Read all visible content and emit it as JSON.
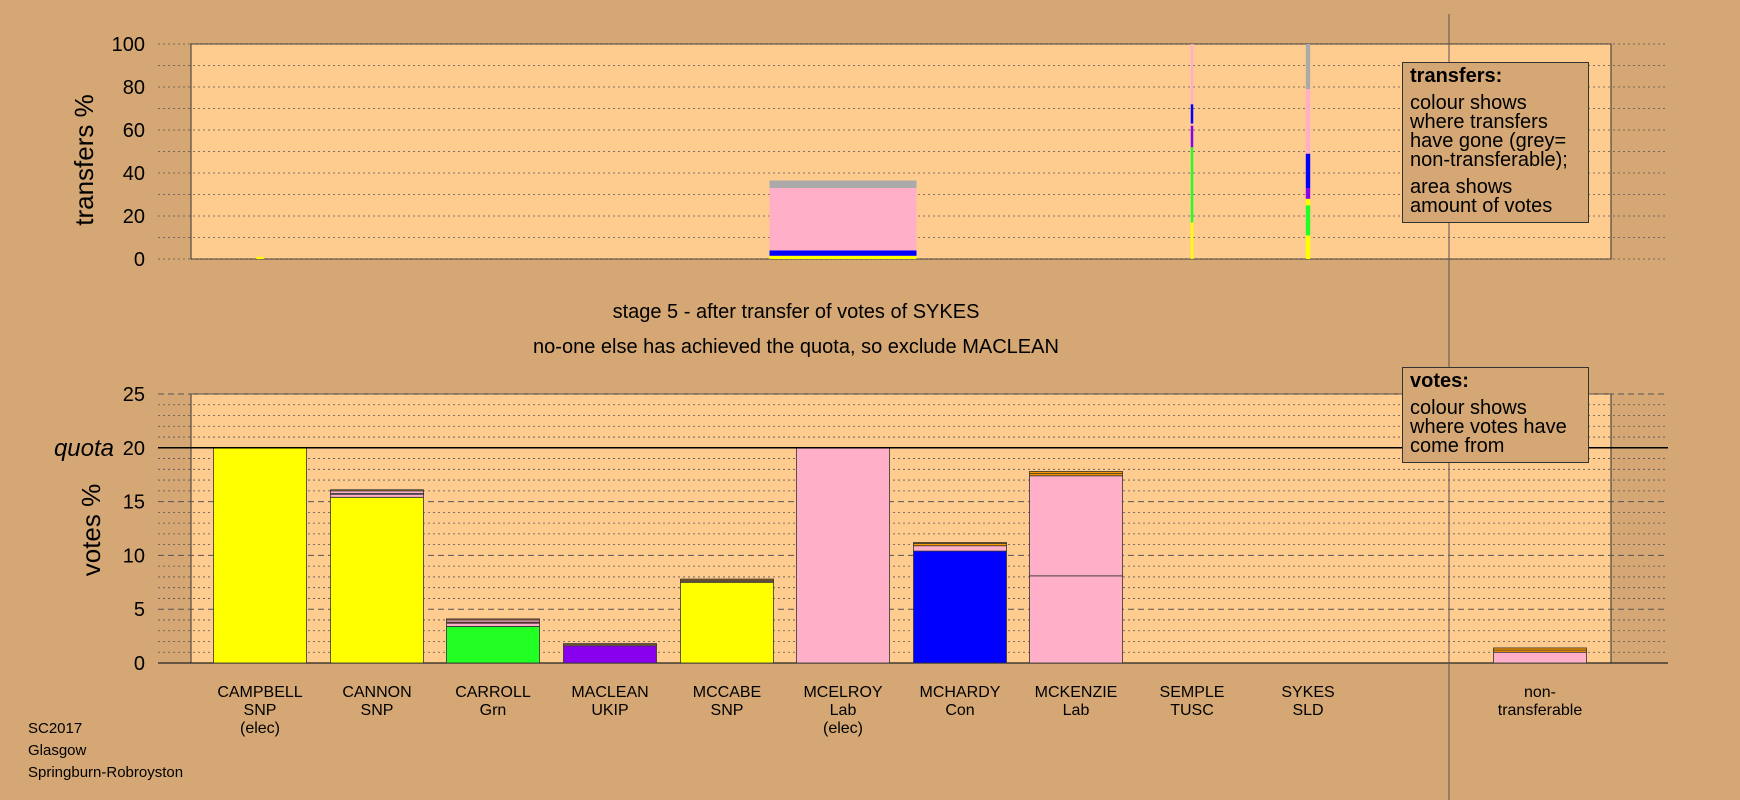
{
  "header": {
    "stage": "stage 5 - after transfer of votes of SYKES",
    "note": "no-one else has achieved the quota, so exclude MACLEAN"
  },
  "legend_transfers": {
    "title": "transfers:",
    "p1": "colour shows where transfers have gone (grey= non-transferable);",
    "p2": "area shows amount of votes"
  },
  "legend_votes": {
    "title": "votes:",
    "p1": "colour shows where votes have come from"
  },
  "footer": {
    "line1": "SC2017",
    "line2": "Glasgow",
    "line3": "Springburn-Robroyston"
  },
  "colors": {
    "background": "#d4a774",
    "plot_bg": "#ffcc90",
    "SNP": "#ffff00",
    "Lab": "#ffb0c8",
    "Grn": "#22ff22",
    "UKIP": "#8800ee",
    "Con": "#0000ff",
    "TUSC": "#cc2222",
    "SLD": "#ff9900",
    "non-transferable": "#aaaaaa"
  },
  "chart_data": [
    {
      "type": "bar",
      "title": "",
      "ylabel": "transfers %",
      "ylim": [
        0,
        100
      ],
      "yticks": [
        0,
        20,
        40,
        60,
        80,
        100
      ],
      "grid": true,
      "bars": [
        {
          "candidate": "CAMPBELL",
          "width_pct": 1,
          "segments": [
            {
              "party": "SNP",
              "value": 1
            }
          ]
        },
        {
          "candidate": "MCELROY",
          "width_pct": 20,
          "segments": [
            {
              "party": "SNP",
              "value": 1.5
            },
            {
              "party": "Con",
              "value": 2.5
            },
            {
              "party": "Lab",
              "value": 29
            },
            {
              "party": "non-transferable",
              "value": 3.5
            }
          ]
        },
        {
          "candidate": "SEMPLE",
          "width_pct": 0.3,
          "segments": [
            {
              "party": "SNP",
              "value": 17
            },
            {
              "party": "Grn",
              "value": 35
            },
            {
              "party": "UKIP",
              "value": 10
            },
            {
              "party": "Lab",
              "value": 1
            },
            {
              "party": "Con",
              "value": 9
            },
            {
              "party": "Lab",
              "value": 28
            }
          ]
        },
        {
          "candidate": "SYKES",
          "width_pct": 0.6,
          "segments": [
            {
              "party": "SNP",
              "value": 11
            },
            {
              "party": "Grn",
              "value": 14
            },
            {
              "party": "SNP",
              "value": 3
            },
            {
              "party": "UKIP",
              "value": 5
            },
            {
              "party": "Con",
              "value": 16
            },
            {
              "party": "Lab",
              "value": 30
            },
            {
              "party": "non-transferable",
              "value": 21
            }
          ]
        }
      ]
    },
    {
      "type": "bar",
      "title": "",
      "ylabel": "votes %",
      "ylim": [
        0,
        25
      ],
      "yticks": [
        0,
        5,
        10,
        15,
        20,
        25
      ],
      "quota": 20,
      "quota_label": "quota",
      "grid": true,
      "categories": [
        {
          "name": "CAMPBELL",
          "party": "SNP",
          "status": "(elec)"
        },
        {
          "name": "CANNON",
          "party": "SNP",
          "status": ""
        },
        {
          "name": "CARROLL",
          "party": "Grn",
          "status": ""
        },
        {
          "name": "MACLEAN",
          "party": "UKIP",
          "status": ""
        },
        {
          "name": "MCCABE",
          "party": "SNP",
          "status": ""
        },
        {
          "name": "MCELROY",
          "party": "Lab",
          "status": "(elec)"
        },
        {
          "name": "MCHARDY",
          "party": "Con",
          "status": ""
        },
        {
          "name": "MCKENZIE",
          "party": "Lab",
          "status": ""
        },
        {
          "name": "SEMPLE",
          "party": "TUSC",
          "status": ""
        },
        {
          "name": "SYKES",
          "party": "SLD",
          "status": ""
        }
      ],
      "nontransferable_label": "non-\ntransferable",
      "series": [
        {
          "candidate": "CAMPBELL",
          "segments": [
            {
              "party": "SNP",
              "value": 20
            }
          ]
        },
        {
          "candidate": "CANNON",
          "segments": [
            {
              "party": "SNP",
              "value": 15.4
            },
            {
              "party": "Lab",
              "value": 0.3
            },
            {
              "party": "Con",
              "value": 0.05
            },
            {
              "party": "Lab",
              "value": 0.25
            },
            {
              "party": "SLD",
              "value": 0.1
            }
          ]
        },
        {
          "candidate": "CARROLL",
          "segments": [
            {
              "party": "Grn",
              "value": 3.4
            },
            {
              "party": "Lab",
              "value": 0.3
            },
            {
              "party": "TUSC",
              "value": 0.1
            },
            {
              "party": "Lab",
              "value": 0.2
            },
            {
              "party": "SLD",
              "value": 0.1
            }
          ]
        },
        {
          "candidate": "MACLEAN",
          "segments": [
            {
              "party": "UKIP",
              "value": 1.6
            },
            {
              "party": "Lab",
              "value": 0.1
            },
            {
              "party": "SLD",
              "value": 0.1
            }
          ]
        },
        {
          "candidate": "MCCABE",
          "segments": [
            {
              "party": "SNP",
              "value": 7.5
            },
            {
              "party": "Lab",
              "value": 0.1
            },
            {
              "party": "SLD",
              "value": 0.1
            },
            {
              "party": "SLD",
              "value": 0.1
            }
          ]
        },
        {
          "candidate": "MCELROY",
          "segments": [
            {
              "party": "Lab",
              "value": 20
            }
          ]
        },
        {
          "candidate": "MCHARDY",
          "segments": [
            {
              "party": "Con",
              "value": 10.4
            },
            {
              "party": "Lab",
              "value": 0.5
            },
            {
              "party": "SLD",
              "value": 0.2
            },
            {
              "party": "SLD",
              "value": 0.1
            }
          ]
        },
        {
          "candidate": "MCKENZIE",
          "segments": [
            {
              "party": "Lab",
              "value": 8.1
            },
            {
              "party": "Lab",
              "value": 9.3
            },
            {
              "party": "SLD",
              "value": 0.2
            },
            {
              "party": "SLD",
              "value": 0.2
            }
          ]
        },
        {
          "candidate": "SEMPLE",
          "segments": []
        },
        {
          "candidate": "SYKES",
          "segments": []
        },
        {
          "candidate": "non-transferable",
          "segments": [
            {
              "party": "Lab",
              "value": 1.0
            },
            {
              "party": "SLD",
              "value": 0.2
            },
            {
              "party": "SLD",
              "value": 0.2
            }
          ]
        }
      ]
    }
  ]
}
